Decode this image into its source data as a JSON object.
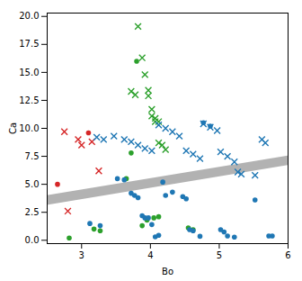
{
  "chart_data": {
    "type": "scatter",
    "xlabel": "Bo",
    "ylabel": "Ca",
    "xlim": [
      2.5,
      6.0
    ],
    "ylim": [
      -0.3,
      20.3
    ],
    "xticks": [
      3,
      4,
      5,
      6
    ],
    "yticks": [
      {
        "value": 0.0,
        "label": "0.0"
      },
      2.5,
      {
        "value": 5.0,
        "label": "5.0"
      },
      7.5,
      {
        "value": 10.0,
        "label": "10.0"
      },
      12.5,
      {
        "value": 15.0,
        "label": "15.0"
      },
      17.5,
      {
        "value": 20.0,
        "label": "20.0"
      }
    ],
    "series": [
      {
        "type": "area",
        "color": "#888888",
        "x": [
          2.5,
          6.0
        ],
        "low": [
          3.125,
          6.675
        ],
        "high": [
          3.975,
          7.525
        ]
      },
      {
        "type": "scatter",
        "color": "#d62728",
        "marker": "circle",
        "x": [
          2.65,
          3.1
        ],
        "values": [
          5.0,
          9.6
        ]
      },
      {
        "type": "scatter",
        "color": "#d62728",
        "marker": "x",
        "x": [
          2.75,
          2.95,
          3.0,
          3.15,
          3.25,
          2.8
        ],
        "values": [
          9.7,
          9.0,
          8.5,
          8.8,
          6.2,
          2.6
        ]
      },
      {
        "type": "scatter",
        "color": "#2ca02c",
        "marker": "circle",
        "x": [
          2.82,
          3.18,
          3.27,
          3.65,
          3.72,
          3.8,
          3.88,
          3.95,
          4.05,
          4.12,
          4.55,
          4.62
        ],
        "values": [
          0.2,
          1.0,
          0.85,
          5.5,
          7.8,
          16.0,
          1.3,
          1.8,
          2.0,
          2.1,
          1.1,
          0.95
        ]
      },
      {
        "type": "scatter",
        "color": "#2ca02c",
        "marker": "x",
        "x": [
          3.72,
          3.78,
          3.82,
          3.88,
          3.92,
          3.97,
          3.97,
          4.02,
          4.02,
          4.07,
          4.07,
          4.12,
          4.12,
          4.17,
          4.22
        ],
        "values": [
          13.3,
          13.0,
          19.1,
          16.3,
          14.8,
          13.4,
          12.9,
          11.7,
          11.1,
          10.9,
          10.6,
          10.6,
          8.7,
          8.5,
          8.1
        ]
      },
      {
        "type": "scatter",
        "color": "#1f77b4",
        "marker": "circle",
        "x": [
          3.12,
          3.27,
          3.52,
          3.62,
          3.72,
          3.77,
          3.82,
          3.88,
          3.92,
          3.97,
          4.02,
          4.07,
          4.12,
          4.18,
          4.22,
          4.32,
          4.47,
          4.52,
          4.57,
          4.62,
          4.72,
          4.77,
          4.87,
          5.02,
          5.07,
          5.12,
          5.22,
          5.52,
          5.72,
          5.77
        ],
        "values": [
          1.5,
          1.3,
          5.5,
          5.4,
          4.2,
          4.0,
          3.8,
          2.2,
          2.0,
          2.0,
          1.4,
          0.3,
          0.45,
          5.2,
          4.0,
          4.3,
          3.9,
          3.7,
          0.95,
          0.85,
          0.35,
          10.5,
          10.2,
          0.95,
          0.75,
          0.38,
          0.28,
          3.6,
          0.38,
          0.38
        ]
      },
      {
        "type": "scatter",
        "color": "#1f77b4",
        "marker": "x",
        "x": [
          3.22,
          3.32,
          3.47,
          3.62,
          3.72,
          3.82,
          3.92,
          4.02,
          4.12,
          4.22,
          4.32,
          4.42,
          4.52,
          4.62,
          4.72,
          4.77,
          4.87,
          4.97,
          5.02,
          5.12,
          5.22,
          5.27,
          5.32,
          5.52,
          5.62,
          5.67
        ],
        "values": [
          9.2,
          9.0,
          9.3,
          9.0,
          8.8,
          8.5,
          8.2,
          8.0,
          10.3,
          10.0,
          9.7,
          9.3,
          8.0,
          7.7,
          7.3,
          10.4,
          10.1,
          9.8,
          7.9,
          7.5,
          7.0,
          6.1,
          5.9,
          5.8,
          9.0,
          8.7
        ]
      }
    ]
  }
}
